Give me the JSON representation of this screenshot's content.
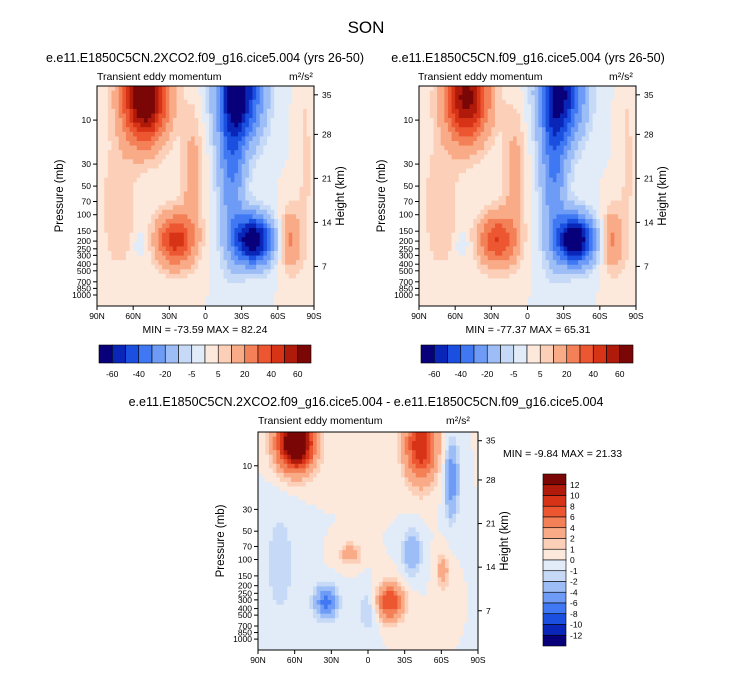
{
  "figure": {
    "title": "SON"
  },
  "chart_data": [
    {
      "type": "contour",
      "title": "e.e11.E1850C5CN.2XCO2.f09_g16.cice5.004 (yrs 26-50)",
      "subtitle_left": "Transient eddy momentum",
      "units": "m²/s²",
      "ylabel": "Pressure (mb)",
      "ylabel_right": "Height (km)",
      "x_ticks": [
        "90N",
        "60N",
        "30N",
        "0",
        "30S",
        "60S",
        "90S"
      ],
      "y_ticks": [
        "10",
        "30",
        "50",
        "70",
        "100",
        "150",
        "200",
        "250",
        "300",
        "400",
        "500",
        "700",
        "850",
        "1000"
      ],
      "y2_ticks": [
        "35",
        "28",
        "21",
        "14",
        "7"
      ],
      "stats": "MIN = -73.59  MAX = 82.24",
      "min": -73.59,
      "max": 82.24,
      "colorbar_labels": [
        "-60",
        "-40",
        "-20",
        "-5",
        "5",
        "20",
        "40",
        "60"
      ]
    },
    {
      "type": "contour",
      "title": "e.e11.E1850C5CN.f09_g16.cice5.004 (yrs 26-50)",
      "subtitle_left": "Transient eddy momentum",
      "units": "m²/s²",
      "ylabel": "Pressure (mb)",
      "ylabel_right": "Height (km)",
      "x_ticks": [
        "90N",
        "60N",
        "30N",
        "0",
        "30S",
        "60S",
        "90S"
      ],
      "y_ticks": [
        "10",
        "30",
        "50",
        "70",
        "100",
        "150",
        "200",
        "250",
        "300",
        "400",
        "500",
        "700",
        "850",
        "1000"
      ],
      "y2_ticks": [
        "35",
        "28",
        "21",
        "14",
        "7"
      ],
      "stats": "MIN = -77.37  MAX = 65.31",
      "min": -77.37,
      "max": 65.31,
      "colorbar_labels": [
        "-60",
        "-40",
        "-20",
        "-5",
        "5",
        "20",
        "40",
        "60"
      ]
    },
    {
      "type": "contour",
      "title": "e.e11.E1850C5CN.2XCO2.f09_g16.cice5.004 - e.e11.E1850C5CN.f09_g16.cice5.004",
      "subtitle_left": "Transient eddy momentum",
      "units": "m²/s²",
      "ylabel": "Pressure (mb)",
      "ylabel_right": "Height (km)",
      "x_ticks": [
        "90N",
        "60N",
        "30N",
        "0",
        "30S",
        "60S",
        "90S"
      ],
      "y_ticks": [
        "10",
        "30",
        "50",
        "70",
        "100",
        "150",
        "200",
        "250",
        "300",
        "400",
        "500",
        "700",
        "850",
        "1000"
      ],
      "y2_ticks": [
        "35",
        "28",
        "21",
        "14",
        "7"
      ],
      "stats": "MIN = -9.84  MAX = 21.33",
      "min": -9.84,
      "max": 21.33,
      "colorbar_labels": [
        "12",
        "10",
        "8",
        "6",
        "4",
        "2",
        "1",
        "0",
        "-1",
        "-2",
        "-4",
        "-6",
        "-8",
        "-10",
        "-12"
      ]
    }
  ],
  "colors": {
    "palette": [
      "#08007a",
      "#0a26b8",
      "#1a4fe0",
      "#3f78f2",
      "#6d9bf6",
      "#9dbdf7",
      "#c6d9f6",
      "#e2ecf8",
      "#fde9dc",
      "#fcd0b8",
      "#f9ab88",
      "#f48058",
      "#ec5630",
      "#d73316",
      "#b01a0a",
      "#7a0606"
    ],
    "diff_palette": [
      "#7a0606",
      "#b01a0a",
      "#d73316",
      "#ec5630",
      "#f48058",
      "#f9ab88",
      "#fcd0b8",
      "#fde9dc",
      "#e2ecf8",
      "#c6d9f6",
      "#9dbdf7",
      "#6d9bf6",
      "#3f78f2",
      "#1a4fe0",
      "#0a26b8",
      "#08007a"
    ]
  }
}
